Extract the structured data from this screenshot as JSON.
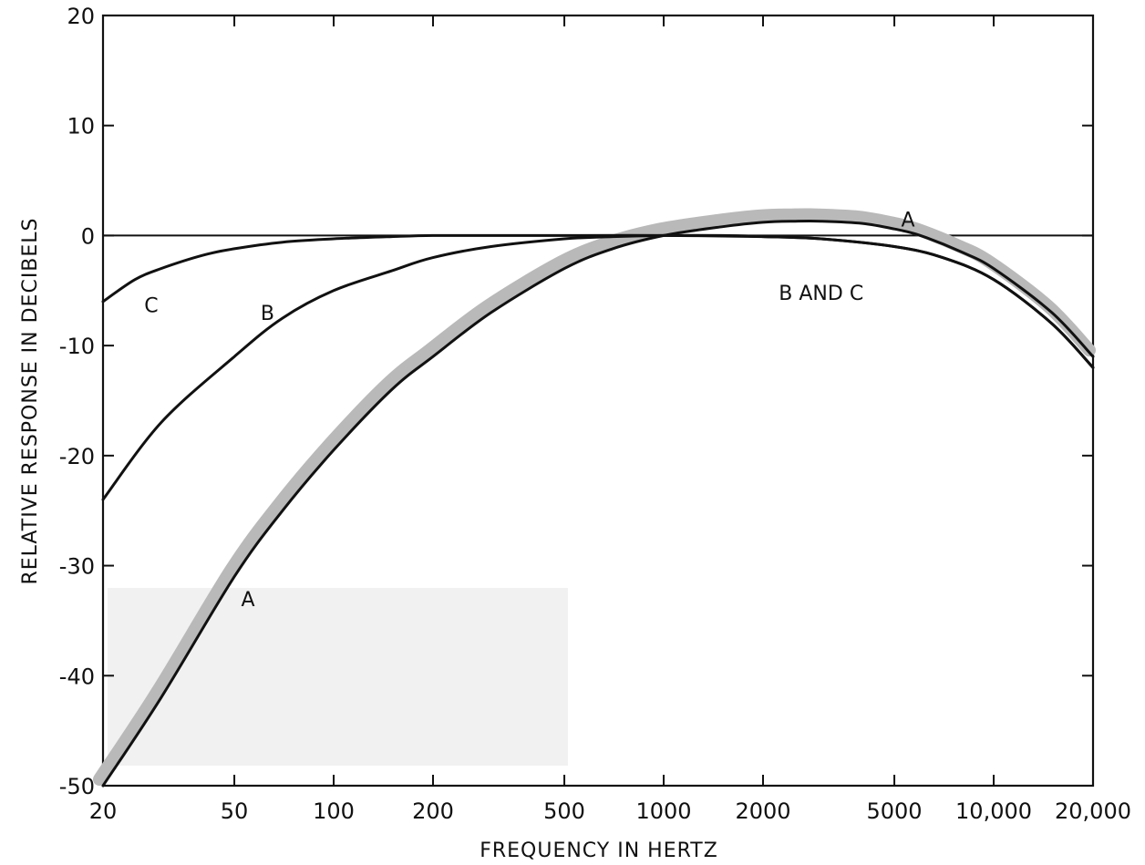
{
  "chart_data": {
    "type": "line",
    "title": "",
    "xlabel": "FREQUENCY IN HERTZ",
    "ylabel": "RELATIVE RESPONSE IN DECIBELS",
    "xscale": "log",
    "xlim": [
      20,
      20000
    ],
    "ylim": [
      -50,
      20
    ],
    "grid": false,
    "x_ticks": [
      {
        "value": 20,
        "label": "20"
      },
      {
        "value": 50,
        "label": "50"
      },
      {
        "value": 100,
        "label": "100"
      },
      {
        "value": 200,
        "label": "200"
      },
      {
        "value": 500,
        "label": "500"
      },
      {
        "value": 1000,
        "label": "1000"
      },
      {
        "value": 2000,
        "label": "2000"
      },
      {
        "value": 5000,
        "label": "5000"
      },
      {
        "value": 10000,
        "label": "10,000"
      },
      {
        "value": 20000,
        "label": "20,000"
      }
    ],
    "y_ticks": [
      {
        "value": 20,
        "label": "20"
      },
      {
        "value": 10,
        "label": "10"
      },
      {
        "value": 0,
        "label": "0"
      },
      {
        "value": -10,
        "label": "-10"
      },
      {
        "value": -20,
        "label": "-20"
      },
      {
        "value": -30,
        "label": "-30"
      },
      {
        "value": -40,
        "label": "-40"
      },
      {
        "value": -50,
        "label": "-50"
      }
    ],
    "reference_line": {
      "y": 0
    },
    "series": [
      {
        "name": "A",
        "color": "#111111",
        "x": [
          20,
          30,
          50,
          70,
          100,
          150,
          200,
          300,
          500,
          700,
          1000,
          1500,
          2000,
          2500,
          3000,
          4000,
          5000,
          6000,
          8000,
          10000,
          15000,
          20000
        ],
        "y": [
          -50,
          -42,
          -31,
          -25,
          -19.5,
          -14,
          -11,
          -7,
          -3,
          -1.2,
          0,
          0.8,
          1.2,
          1.3,
          1.3,
          1.1,
          0.6,
          0,
          -1.5,
          -3,
          -7,
          -11
        ]
      },
      {
        "name": "B",
        "color": "#111111",
        "x": [
          20,
          30,
          50,
          70,
          100,
          150,
          200,
          300,
          500,
          700,
          1000,
          1500,
          2000,
          3000,
          5000,
          7000,
          10000,
          15000,
          20000
        ],
        "y": [
          -24,
          -17,
          -11,
          -7.5,
          -5,
          -3.2,
          -2,
          -1,
          -0.3,
          -0.1,
          0,
          0,
          -0.1,
          -0.3,
          -1,
          -2,
          -4,
          -8,
          -12
        ]
      },
      {
        "name": "C",
        "color": "#111111",
        "x": [
          20,
          25,
          30,
          40,
          50,
          70,
          100,
          150,
          200,
          300,
          500,
          1000,
          2000,
          3000,
          5000,
          7000,
          10000,
          15000,
          20000
        ],
        "y": [
          -6,
          -4,
          -3,
          -1.8,
          -1.2,
          -0.6,
          -0.3,
          -0.1,
          0,
          0,
          0,
          0,
          -0.1,
          -0.3,
          -1,
          -2,
          -4,
          -8,
          -12
        ]
      }
    ],
    "annotations": [
      {
        "text": "A",
        "x": 55,
        "y": -33
      },
      {
        "text": "A",
        "x": 5500,
        "y": 1.5
      },
      {
        "text": "B",
        "x": 63,
        "y": -7
      },
      {
        "text": "C",
        "x": 28,
        "y": -6.3
      },
      {
        "text": "B  AND  C",
        "x": 3000,
        "y": -5.2
      }
    ]
  }
}
